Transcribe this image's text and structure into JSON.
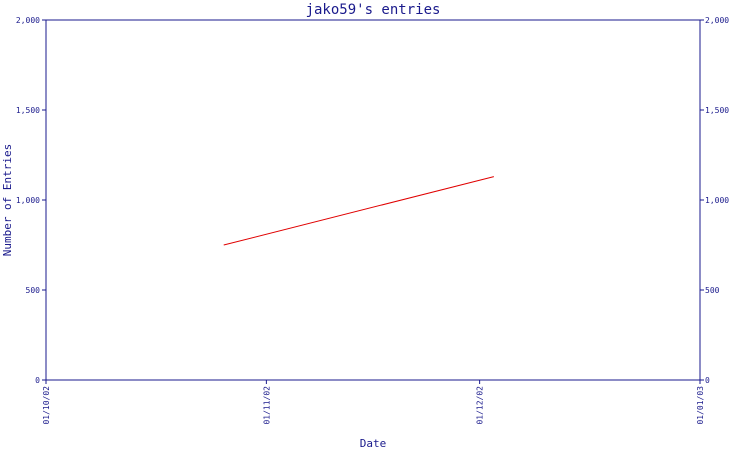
{
  "chart_data": {
    "type": "line",
    "title": "jako59's entries",
    "xlabel": "Date",
    "ylabel": "Number of Entries",
    "ylim": [
      0,
      2000
    ],
    "yticks": [
      0,
      500,
      1000,
      1500,
      2000
    ],
    "ytick_labels": [
      "0",
      "500",
      "1,000",
      "1,500",
      "2,000"
    ],
    "xlim": [
      "2002-10-01",
      "2003-01-01"
    ],
    "xticks": [
      "2002-10-01",
      "2002-11-01",
      "2002-12-01",
      "2003-01-01"
    ],
    "xtick_labels": [
      "01/10/02",
      "01/11/02",
      "01/12/02",
      "01/01/03"
    ],
    "grid": false,
    "series": [
      {
        "color": "#e00000",
        "x": [
          "2002-10-26",
          "2002-12-03"
        ],
        "y": [
          750,
          1130
        ]
      }
    ]
  }
}
